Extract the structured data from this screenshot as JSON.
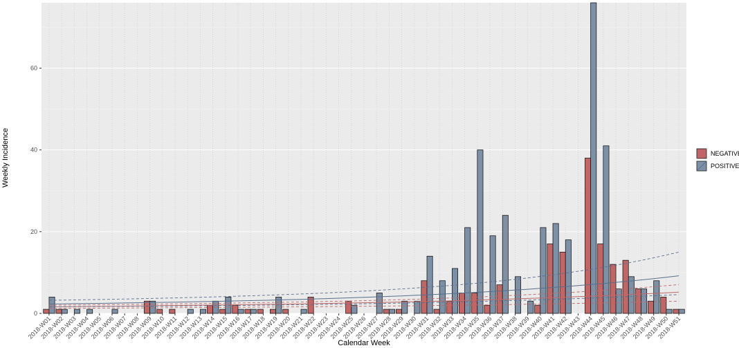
{
  "chart_data": {
    "type": "bar",
    "xlabel": "Calendar Week",
    "ylabel": "Weekly Incidence",
    "ylim": [
      0,
      76
    ],
    "yticks": [
      0,
      20,
      40,
      60
    ],
    "grid": true,
    "legend_position": "right",
    "categories": [
      "2018-W01",
      "2018-W02",
      "2018-W03",
      "2018-W04",
      "2018-W05",
      "2018-W06",
      "2018-W07",
      "2018-W08",
      "2018-W09",
      "2018-W10",
      "2018-W11",
      "2018-W12",
      "2018-W13",
      "2018-W14",
      "2018-W15",
      "2018-W16",
      "2018-W17",
      "2018-W18",
      "2018-W19",
      "2018-W20",
      "2018-W21",
      "2018-W22",
      "2018-W23",
      "2018-W24",
      "2018-W25",
      "2018-W26",
      "2018-W27",
      "2018-W28",
      "2018-W29",
      "2018-W30",
      "2018-W31",
      "2018-W32",
      "2018-W33",
      "2018-W34",
      "2018-W35",
      "2018-W36",
      "2018-W37",
      "2018-W38",
      "2018-W39",
      "2018-W40",
      "2018-W41",
      "2018-W42",
      "2018-W43",
      "2018-W44",
      "2018-W45",
      "2018-W46",
      "2018-W47",
      "2018-W48",
      "2018-W49",
      "2018-W50",
      "2018-W51"
    ],
    "series": [
      {
        "name": "NEGATIVE",
        "color": "#c06666",
        "values": [
          1,
          1,
          0,
          0,
          0,
          0,
          0,
          0,
          3,
          1,
          1,
          0,
          0,
          2,
          1,
          2,
          1,
          1,
          1,
          1,
          0,
          4,
          0,
          0,
          3,
          0,
          0,
          1,
          1,
          0,
          8,
          1,
          3,
          5,
          5,
          2,
          7,
          0,
          0,
          2,
          17,
          15,
          0,
          38,
          17,
          12,
          13,
          6,
          3,
          4,
          1
        ]
      },
      {
        "name": "POSITIVE",
        "color": "#7e90a6",
        "values": [
          4,
          1,
          1,
          1,
          0,
          1,
          0,
          0,
          3,
          0,
          0,
          1,
          1,
          3,
          4,
          1,
          1,
          0,
          4,
          0,
          1,
          0,
          0,
          0,
          2,
          0,
          5,
          1,
          3,
          3,
          14,
          8,
          11,
          21,
          40,
          19,
          24,
          9,
          3,
          21,
          22,
          18,
          0,
          76,
          41,
          6,
          9,
          6,
          8,
          1,
          1
        ]
      }
    ],
    "trend_lines": [
      {
        "series": "NEGATIVE",
        "color": "#c06666",
        "fit": [
          1.6,
          1.63,
          1.66,
          1.69,
          1.72,
          1.75,
          1.78,
          1.81,
          1.85,
          1.89,
          1.93,
          1.97,
          2.01,
          2.05,
          2.09,
          2.13,
          2.17,
          2.21,
          2.25,
          2.29,
          2.34,
          2.39,
          2.44,
          2.49,
          2.55,
          2.61,
          2.67,
          2.73,
          2.8,
          2.87,
          2.94,
          3.02,
          3.1,
          3.18,
          3.27,
          3.36,
          3.45,
          3.55,
          3.65,
          3.75,
          3.86,
          3.97,
          4.09,
          4.21,
          4.34,
          4.47,
          4.61,
          4.75,
          4.9,
          5.05,
          5.2
        ],
        "upper": [
          2.0,
          2.03,
          2.06,
          2.09,
          2.12,
          2.15,
          2.18,
          2.21,
          2.25,
          2.29,
          2.33,
          2.37,
          2.41,
          2.45,
          2.5,
          2.55,
          2.6,
          2.65,
          2.7,
          2.75,
          2.8,
          2.86,
          2.92,
          2.98,
          3.05,
          3.12,
          3.2,
          3.28,
          3.37,
          3.46,
          3.56,
          3.67,
          3.78,
          3.9,
          4.02,
          4.15,
          4.29,
          4.43,
          4.58,
          4.74,
          4.9,
          5.07,
          5.25,
          5.44,
          5.64,
          5.85,
          6.07,
          6.3,
          6.54,
          6.79,
          7.05
        ],
        "lower": [
          1.2,
          1.22,
          1.24,
          1.26,
          1.28,
          1.3,
          1.32,
          1.34,
          1.36,
          1.38,
          1.4,
          1.42,
          1.44,
          1.46,
          1.48,
          1.5,
          1.52,
          1.54,
          1.56,
          1.58,
          1.6,
          1.63,
          1.66,
          1.69,
          1.72,
          1.75,
          1.78,
          1.81,
          1.84,
          1.87,
          1.91,
          1.95,
          1.99,
          2.03,
          2.07,
          2.11,
          2.15,
          2.2,
          2.25,
          2.3,
          2.35,
          2.4,
          2.46,
          2.52,
          2.58,
          2.64,
          2.71,
          2.78,
          2.85,
          2.92,
          3.0
        ]
      },
      {
        "series": "POSITIVE",
        "color": "#5a6e8c",
        "fit": [
          2.3,
          2.34,
          2.38,
          2.42,
          2.46,
          2.5,
          2.55,
          2.6,
          2.65,
          2.7,
          2.75,
          2.81,
          2.87,
          2.93,
          2.99,
          3.06,
          3.13,
          3.2,
          3.28,
          3.36,
          3.44,
          3.53,
          3.62,
          3.72,
          3.82,
          3.93,
          4.04,
          4.16,
          4.28,
          4.41,
          4.55,
          4.69,
          4.84,
          5.0,
          5.17,
          5.34,
          5.52,
          5.71,
          5.91,
          6.12,
          6.34,
          6.57,
          6.81,
          7.06,
          7.32,
          7.6,
          7.89,
          8.2,
          8.52,
          8.85,
          9.2
        ],
        "upper": [
          3.2,
          3.25,
          3.3,
          3.35,
          3.4,
          3.46,
          3.52,
          3.58,
          3.65,
          3.72,
          3.79,
          3.87,
          3.95,
          4.03,
          4.12,
          4.21,
          4.31,
          4.41,
          4.52,
          4.63,
          4.75,
          4.88,
          5.01,
          5.15,
          5.3,
          5.46,
          5.63,
          5.81,
          6.0,
          6.2,
          6.41,
          6.64,
          6.88,
          7.13,
          7.4,
          7.69,
          8.0,
          8.33,
          8.68,
          9.05,
          9.44,
          9.86,
          10.3,
          10.77,
          11.27,
          11.8,
          12.37,
          12.97,
          13.61,
          14.29,
          15.0
        ],
        "lower": [
          1.6,
          1.62,
          1.64,
          1.66,
          1.68,
          1.7,
          1.72,
          1.74,
          1.76,
          1.78,
          1.8,
          1.83,
          1.86,
          1.89,
          1.92,
          1.95,
          1.98,
          2.01,
          2.05,
          2.09,
          2.13,
          2.17,
          2.21,
          2.26,
          2.31,
          2.36,
          2.41,
          2.47,
          2.53,
          2.59,
          2.65,
          2.72,
          2.79,
          2.86,
          2.93,
          3.01,
          3.09,
          3.17,
          3.26,
          3.35,
          3.44,
          3.54,
          3.64,
          3.75,
          3.86,
          3.97,
          4.09,
          4.21,
          4.34,
          4.47,
          4.6
        ]
      }
    ]
  }
}
